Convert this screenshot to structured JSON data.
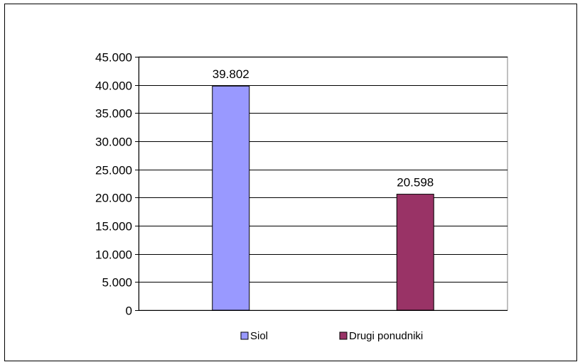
{
  "chart_data": {
    "type": "bar",
    "title": "",
    "xlabel": "",
    "ylabel": "",
    "categories": [
      "Siol",
      "Drugi ponudniki"
    ],
    "values": [
      39802,
      20598
    ],
    "value_labels": [
      "39.802",
      "20.598"
    ],
    "colors": [
      "#9999ff",
      "#993366"
    ],
    "ylim": [
      0,
      45000
    ],
    "yticks": [
      0,
      5000,
      10000,
      15000,
      20000,
      25000,
      30000,
      35000,
      40000,
      45000
    ],
    "ytick_labels": [
      "0",
      "5.000",
      "10.000",
      "15.000",
      "20.000",
      "25.000",
      "30.000",
      "35.000",
      "40.000",
      "45.000"
    ],
    "grid": true,
    "legend": {
      "position": "bottom",
      "entries": [
        {
          "label": "Siol",
          "color": "#9999ff"
        },
        {
          "label": "Drugi ponudniki",
          "color": "#993366"
        }
      ]
    }
  }
}
